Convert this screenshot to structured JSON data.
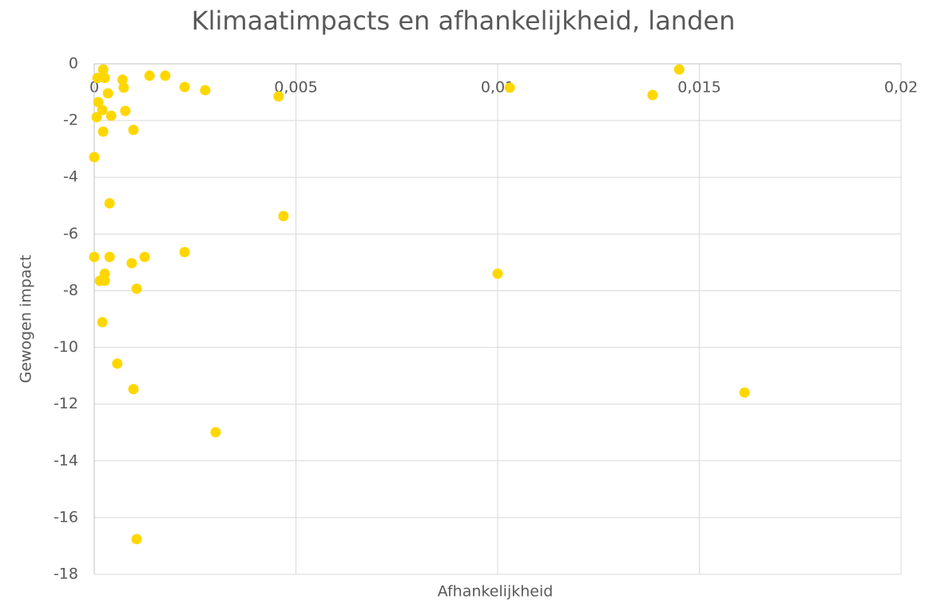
{
  "chart_data": {
    "type": "scatter",
    "title": "Klimaatimpacts en afhankelijkheid, landen",
    "x_label": "Afhankelijkheid",
    "y_label": "Gewogen impact",
    "color": "#ffd700",
    "grid": true,
    "xlim": [
      0,
      0.02
    ],
    "xticks": [
      0,
      {
        "value": 0.005,
        "label": "0,005"
      },
      {
        "value": 0.01,
        "label": "0,01"
      },
      {
        "value": 0.015,
        "label": "0,015"
      },
      {
        "value": 0.02,
        "label": "0,02"
      }
    ],
    "ylim": [
      -18,
      0
    ],
    "yticks": [
      0,
      -2,
      -4,
      -6,
      -8,
      -10,
      -12,
      -14,
      -16,
      -18
    ],
    "x": [
      0.00022,
      0.00026,
      8e-05,
      0.0007,
      0.00073,
      0.00137,
      0.00176,
      0.00224,
      0.00275,
      0.00034,
      0.0001,
      0.00457,
      0.0103,
      0.01384,
      0.0145,
      0.00077,
      0.0002,
      0.00042,
      6e-05,
      0.00097,
      0.00022,
      0,
      0.00038,
      0.00469,
      0,
      0.00038,
      0.00125,
      0.00224,
      0.00093,
      0.00026,
      0.00014,
      0.00026,
      0.01,
      0.00105,
      0.0002,
      0.00057,
      0.00097,
      0.01612,
      0.00301,
      0.00105
    ],
    "y": [
      -0.2,
      -0.5,
      -0.5,
      -0.56,
      -0.84,
      -0.42,
      -0.42,
      -0.82,
      -0.93,
      -1.04,
      -1.35,
      -1.15,
      -0.84,
      -1.1,
      -0.2,
      -1.66,
      -1.63,
      -1.83,
      -1.88,
      -2.33,
      -2.39,
      -3.29,
      -4.92,
      -5.37,
      -6.81,
      -6.81,
      -6.81,
      -6.64,
      -7.03,
      -7.4,
      -7.65,
      -7.65,
      -7.4,
      -7.93,
      -9.11,
      -10.57,
      -11.47,
      -11.59,
      -12.99,
      -16.76
    ]
  }
}
